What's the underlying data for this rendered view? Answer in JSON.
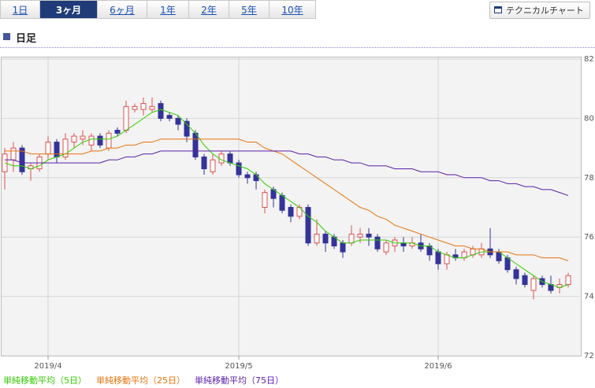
{
  "tabs": [
    "1日",
    "3ヶ月",
    "6ヶ月",
    "1年",
    "2年",
    "5年",
    "10年"
  ],
  "button": "テクニカルチャート",
  "section_title": "日足",
  "chart_data": {
    "type": "candlestick",
    "categories": [
      null,
      null,
      null,
      null,
      null,
      "2019/4",
      null,
      null,
      null,
      null,
      null,
      null,
      null,
      null,
      null,
      null,
      null,
      null,
      null,
      null,
      null,
      null,
      null,
      null,
      null,
      null,
      null,
      "2019/5",
      null,
      null,
      null,
      null,
      null,
      null,
      null,
      null,
      null,
      null,
      null,
      null,
      null,
      null,
      null,
      null,
      null,
      null,
      null,
      null,
      null,
      null,
      "2019/6",
      null,
      null,
      null,
      null,
      null,
      null,
      null,
      null,
      null,
      null,
      null,
      null,
      null,
      null,
      null
    ],
    "open": [
      78.2,
      78.6,
      79.0,
      78.3,
      78.3,
      78.8,
      79.2,
      78.7,
      79.2,
      79.3,
      79.1,
      79.4,
      79.0,
      79.6,
      79.6,
      80.3,
      80.3,
      80.3,
      80.5,
      80.1,
      80.0,
      79.9,
      79.5,
      78.7,
      78.2,
      78.5,
      78.8,
      78.5,
      78.1,
      78.1,
      77.0,
      77.6,
      77.4,
      77.0,
      76.7,
      77.0,
      75.8,
      76.1,
      76.0,
      75.8,
      75.8,
      76.0,
      76.1,
      76.0,
      75.5,
      75.7,
      75.8,
      75.7,
      75.8,
      75.7,
      75.5,
      75.1,
      75.4,
      75.3,
      75.4,
      75.4,
      75.6,
      75.5,
      75.3,
      74.9,
      74.7,
      74.2,
      74.6,
      74.4,
      74.3,
      74.4
    ],
    "high": [
      79.0,
      79.2,
      79.1,
      78.5,
      78.8,
      79.4,
      79.3,
      79.5,
      79.5,
      79.6,
      79.5,
      79.5,
      79.6,
      79.7,
      80.6,
      80.5,
      80.7,
      80.7,
      80.6,
      80.2,
      80.1,
      80.0,
      79.6,
      78.8,
      78.8,
      78.9,
      78.9,
      78.6,
      78.2,
      78.2,
      77.6,
      77.7,
      77.5,
      77.1,
      77.1,
      77.1,
      76.6,
      76.2,
      76.1,
      75.9,
      76.4,
      76.3,
      76.3,
      76.1,
      75.9,
      76.0,
      76.0,
      76.0,
      76.1,
      75.8,
      75.6,
      75.5,
      75.6,
      75.6,
      75.7,
      75.8,
      76.3,
      75.6,
      75.4,
      75.0,
      74.8,
      74.7,
      74.7,
      74.7,
      74.6,
      74.8
    ],
    "low": [
      77.6,
      78.2,
      78.1,
      77.9,
      78.2,
      78.6,
      78.5,
      78.6,
      79.0,
      79.1,
      78.9,
      79.0,
      78.9,
      79.4,
      79.5,
      80.2,
      80.1,
      80.2,
      79.9,
      79.9,
      79.6,
      79.2,
      78.6,
      78.1,
      78.1,
      78.4,
      78.4,
      78.0,
      77.8,
      77.6,
      76.8,
      77.0,
      76.8,
      76.5,
      76.6,
      75.7,
      75.7,
      75.5,
      75.6,
      75.3,
      75.7,
      75.8,
      75.7,
      75.5,
      75.4,
      75.5,
      75.5,
      75.6,
      75.5,
      75.2,
      74.9,
      74.9,
      75.2,
      75.2,
      75.3,
      75.3,
      75.3,
      75.1,
      74.8,
      74.4,
      74.3,
      73.9,
      74.3,
      74.1,
      74.1,
      74.3
    ],
    "close": [
      78.8,
      79.0,
      78.2,
      78.4,
      78.7,
      79.2,
      78.7,
      79.3,
      79.4,
      79.4,
      79.4,
      79.1,
      79.5,
      79.5,
      80.4,
      80.4,
      80.5,
      80.4,
      80.0,
      80.0,
      79.8,
      79.4,
      78.7,
      78.3,
      78.6,
      78.8,
      78.5,
      78.1,
      78.0,
      77.9,
      77.5,
      77.3,
      76.9,
      76.7,
      77.0,
      75.8,
      76.1,
      75.8,
      75.7,
      75.5,
      76.1,
      76.1,
      76.0,
      75.6,
      75.8,
      75.9,
      75.7,
      75.8,
      75.6,
      75.4,
      75.1,
      75.4,
      75.3,
      75.5,
      75.6,
      75.6,
      75.4,
      75.2,
      74.9,
      74.6,
      74.4,
      74.6,
      74.4,
      74.2,
      74.4,
      74.7
    ],
    "up_color": "#d9534f",
    "down_color": "#333399",
    "series": [
      {
        "name": "単純移動平均（5日）",
        "color": "#33cc00",
        "values": [
          78.5,
          78.4,
          78.4,
          78.3,
          78.4,
          78.6,
          78.7,
          78.8,
          79.0,
          79.2,
          79.3,
          79.3,
          79.3,
          79.4,
          79.6,
          79.8,
          80.0,
          80.2,
          80.3,
          80.2,
          80.1,
          79.8,
          79.5,
          79.1,
          78.8,
          78.6,
          78.5,
          78.4,
          78.3,
          78.1,
          77.8,
          77.6,
          77.4,
          77.2,
          77.0,
          76.7,
          76.5,
          76.2,
          76.0,
          75.8,
          75.8,
          75.9,
          75.9,
          75.9,
          75.9,
          75.8,
          75.8,
          75.8,
          75.7,
          75.7,
          75.5,
          75.4,
          75.3,
          75.3,
          75.4,
          75.5,
          75.5,
          75.5,
          75.3,
          75.1,
          74.9,
          74.7,
          74.5,
          74.4,
          74.3,
          74.4
        ]
      },
      {
        "name": "単純移動平均（25日）",
        "color": "#e8730c",
        "values": [
          78.9,
          78.9,
          78.9,
          78.8,
          78.8,
          78.8,
          78.8,
          78.8,
          78.8,
          78.8,
          78.9,
          78.9,
          79.0,
          79.0,
          79.1,
          79.1,
          79.2,
          79.2,
          79.3,
          79.3,
          79.3,
          79.3,
          79.3,
          79.3,
          79.3,
          79.3,
          79.3,
          79.3,
          79.2,
          79.2,
          79.0,
          78.9,
          78.8,
          78.6,
          78.4,
          78.2,
          78.0,
          77.8,
          77.6,
          77.4,
          77.2,
          77.0,
          76.9,
          76.7,
          76.6,
          76.4,
          76.3,
          76.2,
          76.1,
          76.0,
          75.9,
          75.8,
          75.7,
          75.7,
          75.6,
          75.6,
          75.5,
          75.5,
          75.5,
          75.4,
          75.4,
          75.4,
          75.3,
          75.3,
          75.3,
          75.2
        ]
      },
      {
        "name": "単純移動平均（75日）",
        "color": "#5a1fa8",
        "values": [
          78.6,
          78.6,
          78.5,
          78.5,
          78.5,
          78.5,
          78.5,
          78.5,
          78.5,
          78.5,
          78.5,
          78.5,
          78.6,
          78.6,
          78.7,
          78.7,
          78.8,
          78.8,
          78.9,
          78.9,
          78.9,
          78.9,
          78.9,
          78.9,
          78.9,
          78.9,
          78.9,
          78.9,
          78.9,
          78.9,
          78.9,
          78.9,
          78.9,
          78.9,
          78.8,
          78.8,
          78.7,
          78.7,
          78.6,
          78.6,
          78.5,
          78.5,
          78.4,
          78.4,
          78.4,
          78.3,
          78.3,
          78.3,
          78.2,
          78.2,
          78.2,
          78.1,
          78.1,
          78.0,
          78.0,
          78.0,
          77.9,
          77.9,
          77.8,
          77.8,
          77.7,
          77.7,
          77.6,
          77.6,
          77.5,
          77.4
        ]
      }
    ],
    "ylim": [
      72,
      82
    ],
    "yticks": [
      72,
      74,
      76,
      78,
      80,
      82
    ],
    "grid": true
  }
}
